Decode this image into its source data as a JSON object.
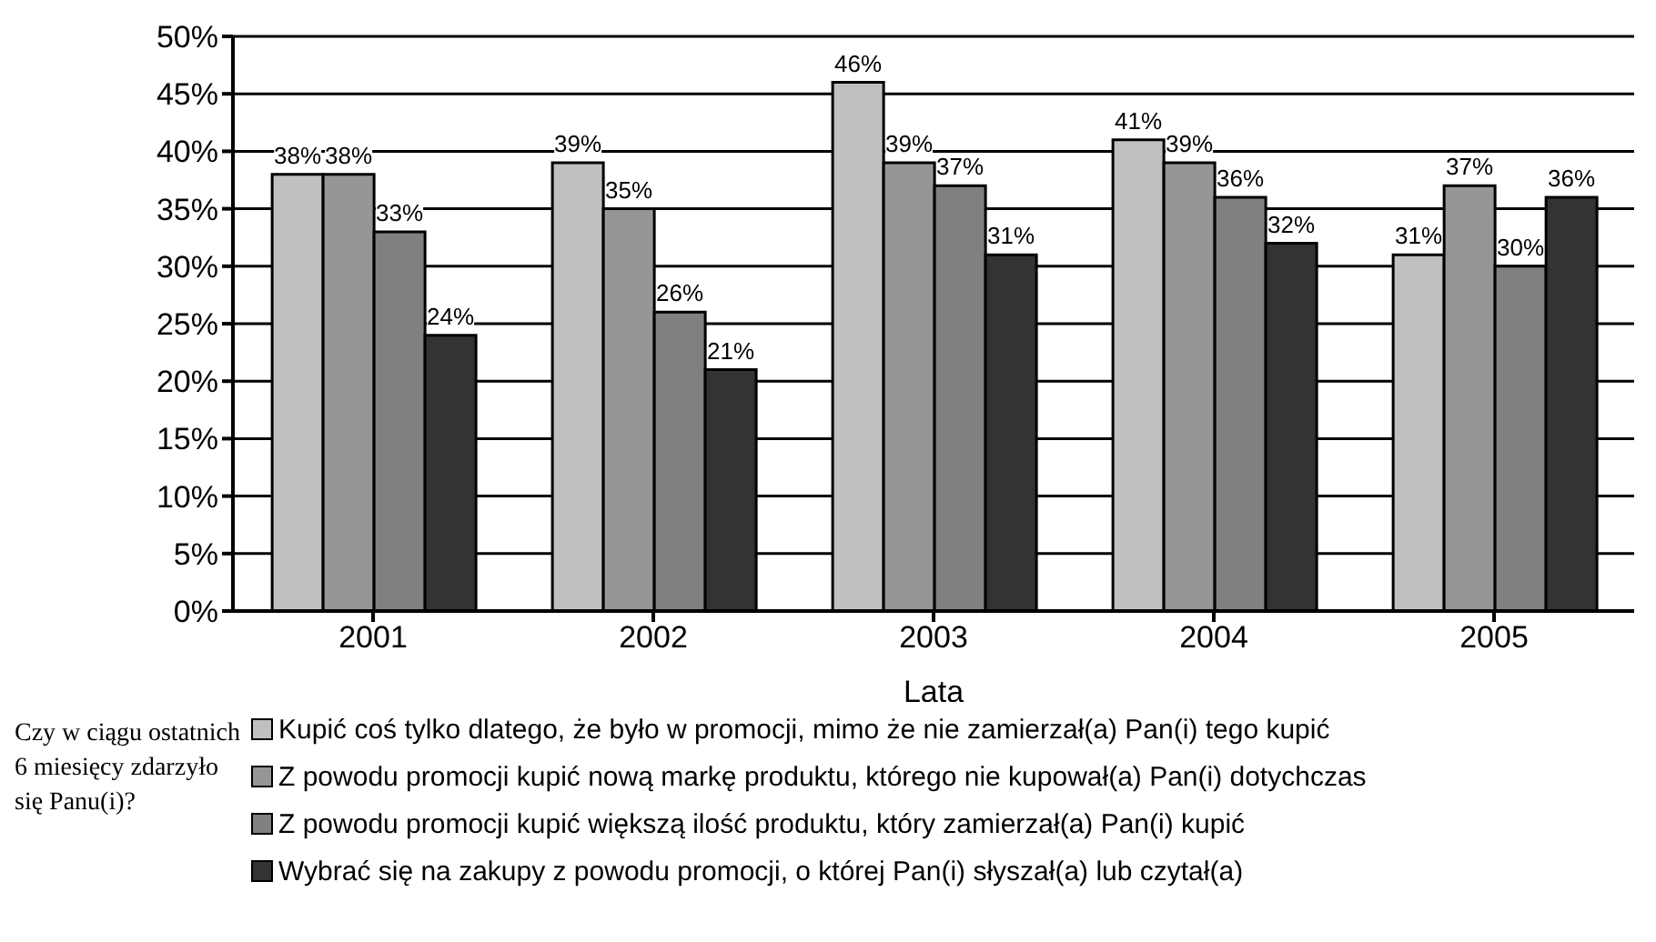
{
  "chart_data": {
    "type": "bar",
    "xlabel": "Lata",
    "legend_title": "Czy w ciągu ostatnich 6 miesięcy zdarzyło się Panu(i)?",
    "categories": [
      "2001",
      "2002",
      "2003",
      "2004",
      "2005"
    ],
    "series": [
      {
        "name": "Kupić coś tylko dlatego, że było w promocji, mimo że nie zamierzał(a) Pan(i) tego kupić",
        "color": "#c0c0c0",
        "values": [
          38,
          39,
          46,
          41,
          31
        ],
        "value_labels": [
          "38%",
          "39%",
          "46%",
          "41%",
          "31%"
        ]
      },
      {
        "name": "Z powodu promocji kupić nową markę produktu, którego nie kupował(a) Pan(i) dotychczas",
        "color": "#969696",
        "values": [
          38,
          35,
          39,
          39,
          37
        ],
        "value_labels": [
          "38%",
          "35%",
          "39%",
          "39%",
          "37%"
        ]
      },
      {
        "name": "Z powodu promocji kupić większą ilość produktu, który zamierzał(a) Pan(i) kupić",
        "color": "#808080",
        "values": [
          33,
          26,
          37,
          36,
          30
        ],
        "value_labels": [
          "33%",
          "26%",
          "37%",
          "36%",
          "30%"
        ]
      },
      {
        "name": "Wybrać się na zakupy z powodu promocji, o której Pan(i) słyszał(a) lub czytał(a)",
        "color": "#333333",
        "values": [
          24,
          21,
          31,
          32,
          36
        ],
        "value_labels": [
          "24%",
          "21%",
          "31%",
          "32%",
          "36%"
        ]
      }
    ],
    "ylim": [
      0,
      50
    ],
    "yticks": [
      {
        "value": 0,
        "label": "0%"
      },
      {
        "value": 5,
        "label": "5%"
      },
      {
        "value": 10,
        "label": "10%"
      },
      {
        "value": 15,
        "label": "15%"
      },
      {
        "value": 20,
        "label": "20%"
      },
      {
        "value": 25,
        "label": "25%"
      },
      {
        "value": 30,
        "label": "30%"
      },
      {
        "value": 35,
        "label": "35%"
      },
      {
        "value": 40,
        "label": "40%"
      },
      {
        "value": 45,
        "label": "45%"
      },
      {
        "value": 50,
        "label": "50%"
      }
    ],
    "grid": "y",
    "legend": "bottom"
  }
}
